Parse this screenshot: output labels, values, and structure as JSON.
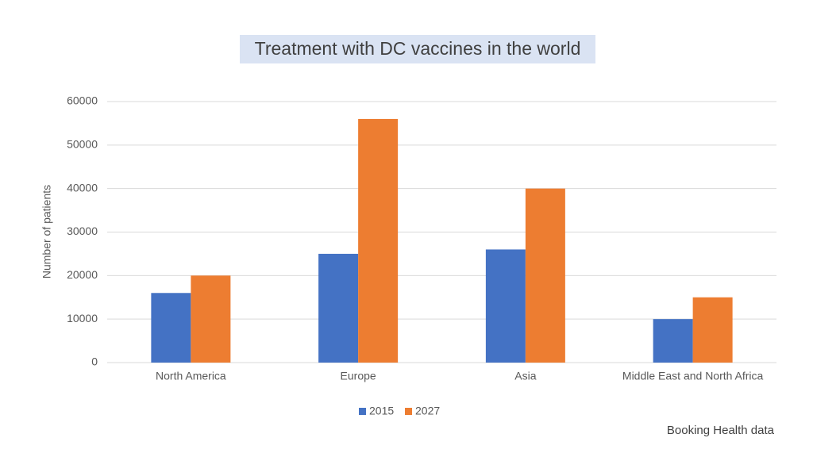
{
  "chart_data": {
    "type": "bar",
    "title": "Treatment with DC vaccines in the world",
    "y_label": "Number of patients",
    "source": "Booking Health data",
    "categories": [
      "North America",
      "Europe",
      "Asia",
      "Middle East and North Africa"
    ],
    "series": [
      {
        "name": "2015",
        "color": "#4472c4",
        "values": [
          16000,
          25000,
          26000,
          10000
        ]
      },
      {
        "name": "2027",
        "color": "#ed7d31",
        "values": [
          20000,
          56000,
          40000,
          15000
        ]
      }
    ],
    "ylim": [
      0,
      60000
    ],
    "yticks": [
      0,
      10000,
      20000,
      30000,
      40000,
      50000,
      60000
    ],
    "grid": true,
    "legend": "bottom"
  }
}
